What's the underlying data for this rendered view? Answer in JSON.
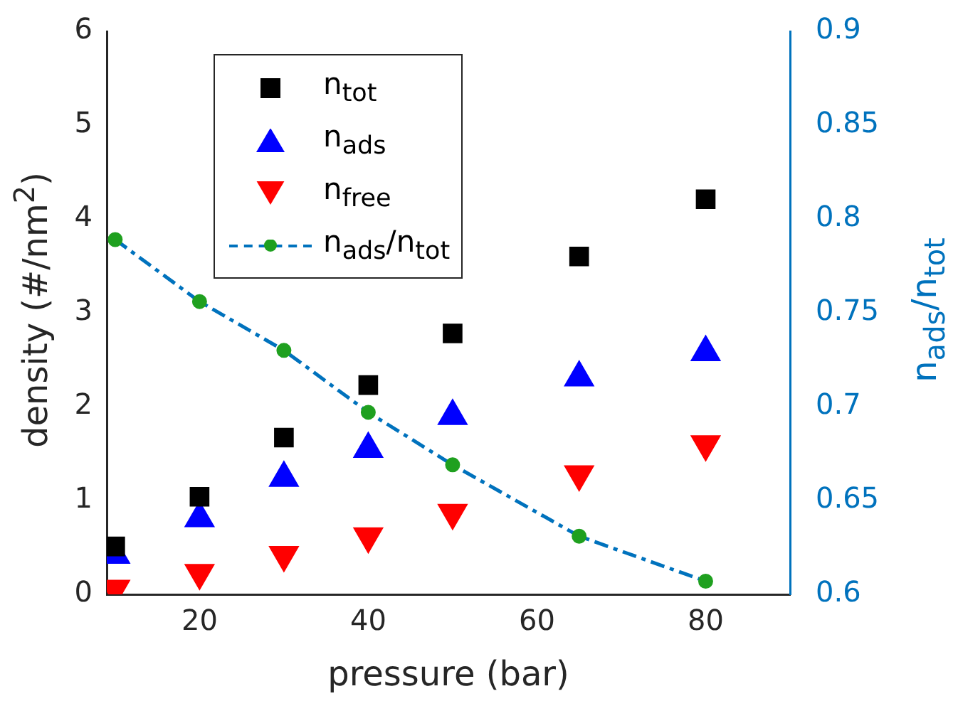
{
  "chart_data": {
    "type": "scatter",
    "xlabel": "pressure (bar)",
    "ylabel": "density (#/nm$^{2}$)",
    "y2label": "n$_{ads}$/n$_{tot}$",
    "x": [
      10,
      20,
      30,
      40,
      50,
      65,
      80
    ],
    "series": [
      {
        "name": "n$_{tot}$",
        "color": "#000000",
        "marker": "square",
        "values": [
          0.51,
          1.04,
          1.67,
          2.23,
          2.78,
          3.6,
          4.21
        ]
      },
      {
        "name": "n$_{ads}$",
        "color": "#0000ff",
        "marker": "triangle",
        "values": [
          0.42,
          0.81,
          1.24,
          1.55,
          1.9,
          2.31,
          2.58
        ]
      },
      {
        "name": "n$_{free}$",
        "color": "#ff0000",
        "marker": "triangle-down",
        "values": [
          0.06,
          0.23,
          0.42,
          0.62,
          0.87,
          1.28,
          1.6
        ]
      },
      {
        "name": "n$_{ads}$/n$_{tot}$",
        "type": "line",
        "axis": "y2",
        "color": "#0072bd",
        "marker": "circle",
        "colors": [
          "#1fa01f",
          "#1fa01f",
          "#1fa01f",
          "#1fa01f",
          "#1fa01f",
          "#1fa01f",
          "#1fa01f"
        ],
        "line_style": "dashed",
        "values": [
          0.789,
          0.756,
          0.73,
          0.697,
          0.669,
          0.631,
          0.607
        ]
      }
    ],
    "xlim": [
      9,
      90
    ],
    "xticks": [
      20,
      40,
      60,
      80
    ],
    "ylim": [
      0,
      6
    ],
    "yticks": [
      0,
      1,
      2,
      3,
      4,
      5,
      6
    ],
    "y2lim": [
      0.6,
      0.9
    ],
    "y2ticks": [
      0.6,
      0.65,
      0.7,
      0.75,
      0.8,
      0.85,
      0.9
    ],
    "grid": false,
    "legend": "top left"
  }
}
